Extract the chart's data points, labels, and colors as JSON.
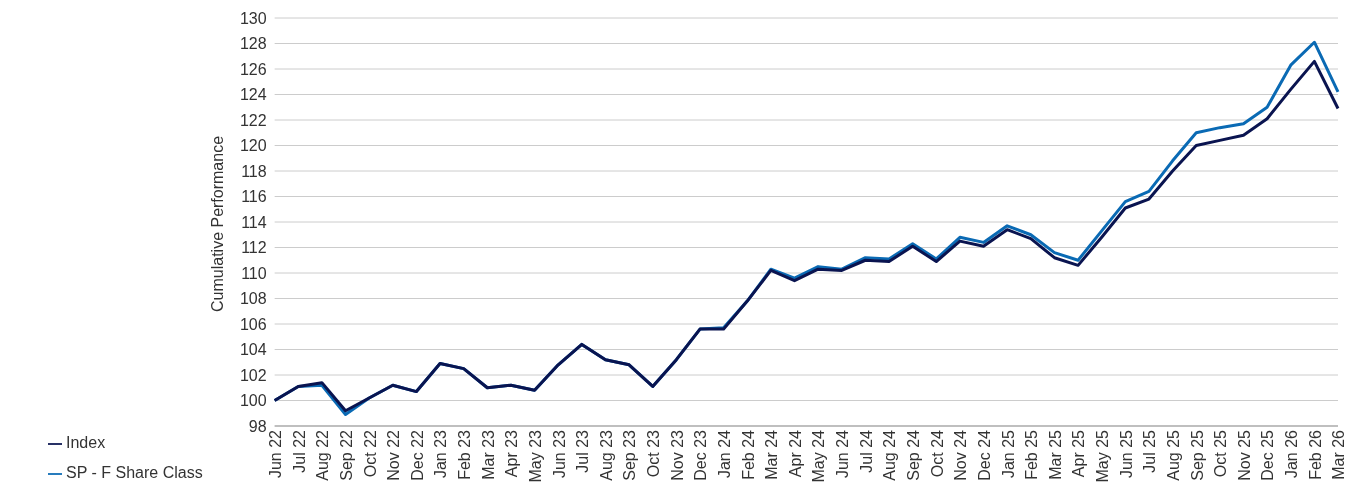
{
  "chart_data": {
    "type": "line",
    "ylabel": "Cumulative Performance",
    "categories": [
      "Jun 22",
      "Jul 22",
      "Aug 22",
      "Sep 22",
      "Oct 22",
      "Nov 22",
      "Dec 22",
      "Jan 23",
      "Feb 23",
      "Mar 23",
      "Apr 23",
      "May 23",
      "Jun 23",
      "Jul 23",
      "Aug 23",
      "Sep 23",
      "Oct 23",
      "Nov 23",
      "Dec 23",
      "Jan 24",
      "Feb 24",
      "Mar 24",
      "Apr 24",
      "May 24",
      "Jun 24",
      "Jul 24",
      "Aug 24",
      "Sep 24",
      "Oct 24",
      "Nov 24",
      "Dec 24",
      "Jan 25",
      "Feb 25",
      "Mar 25",
      "Apr 25",
      "May 25",
      "Jun 25",
      "Jul 25",
      "Aug 25",
      "Sep 25",
      "Oct 25",
      "Nov 25",
      "Dec 25",
      "Jan 26",
      "Feb 26",
      "Mar 26"
    ],
    "series": [
      {
        "name": "SP - F Share Class",
        "color": "#0a6ab4",
        "values": [
          100,
          101.1,
          101.2,
          98.9,
          100.2,
          101.2,
          100.7,
          102.9,
          102.5,
          101.0,
          101.2,
          100.8,
          102.8,
          104.4,
          103.2,
          102.8,
          101.1,
          103.2,
          105.6,
          105.7,
          107.8,
          110.3,
          109.6,
          110.5,
          110.3,
          111.2,
          111.1,
          112.3,
          111.1,
          112.8,
          112.4,
          113.7,
          113.0,
          111.6,
          111.0,
          113.3,
          115.6,
          116.4,
          118.8,
          121.0,
          121.4,
          121.7,
          123.0,
          126.3,
          128.1,
          124.2
        ]
      },
      {
        "name": "Index",
        "color": "#0a1450",
        "values": [
          100,
          101.1,
          101.4,
          99.2,
          100.2,
          101.2,
          100.7,
          102.9,
          102.5,
          101.0,
          101.2,
          100.8,
          102.8,
          104.4,
          103.2,
          102.8,
          101.1,
          103.2,
          105.6,
          105.6,
          107.8,
          110.2,
          109.4,
          110.3,
          110.2,
          111.0,
          110.9,
          112.1,
          110.9,
          112.5,
          112.1,
          113.4,
          112.7,
          111.2,
          110.6,
          112.8,
          115.1,
          115.8,
          118.0,
          120.0,
          120.4,
          120.8,
          122.1,
          124.4,
          126.6,
          122.9
        ]
      }
    ],
    "ylim": [
      98,
      130
    ],
    "yticks": [
      98,
      100,
      102,
      104,
      106,
      108,
      110,
      112,
      114,
      116,
      118,
      120,
      122,
      124,
      126,
      128,
      130
    ],
    "grid": "y",
    "legend": "bottom left",
    "marker": "none",
    "line_style": "solid"
  }
}
